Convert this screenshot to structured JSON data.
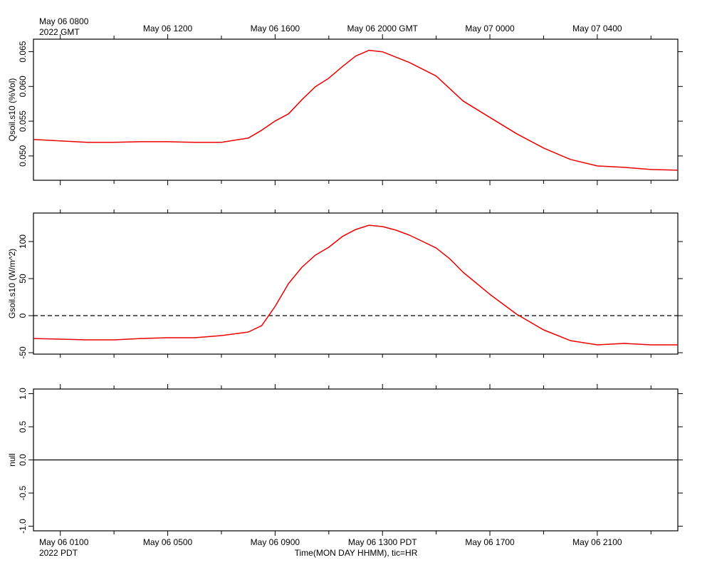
{
  "chart_data": [
    {
      "type": "line",
      "ylabel": "Qsoil.s10 (%Vol)",
      "xlim": [
        "2022-05-06 07:00",
        "2022-05-07 07:00"
      ],
      "x": [
        "2022-05-06 07:00",
        "2022-05-06 08:00",
        "2022-05-06 09:00",
        "2022-05-06 10:00",
        "2022-05-06 11:00",
        "2022-05-06 12:00",
        "2022-05-06 13:00",
        "2022-05-06 14:00",
        "2022-05-06 15:00",
        "2022-05-06 15:30",
        "2022-05-06 16:00",
        "2022-05-06 16:30",
        "2022-05-06 17:00",
        "2022-05-06 17:30",
        "2022-05-06 18:00",
        "2022-05-06 18:30",
        "2022-05-06 19:00",
        "2022-05-06 19:30",
        "2022-05-06 20:00",
        "2022-05-06 21:00",
        "2022-05-06 22:00",
        "2022-05-06 23:00",
        "2022-05-07 00:00",
        "2022-05-07 01:00",
        "2022-05-07 02:00",
        "2022-05-07 03:00",
        "2022-05-07 04:00",
        "2022-05-07 05:00",
        "2022-05-07 06:00",
        "2022-05-07 07:00"
      ],
      "series": [
        {
          "color": "#ee0000",
          "values": [
            0.05236,
            0.05216,
            0.05195,
            0.05195,
            0.05205,
            0.05205,
            0.05195,
            0.05195,
            0.05257,
            0.0537,
            0.05503,
            0.05606,
            0.05811,
            0.05996,
            0.06119,
            0.06283,
            0.06437,
            0.0652,
            0.06499,
            0.06345,
            0.0615,
            0.05791,
            0.05554,
            0.05318,
            0.05113,
            0.04949,
            0.04856,
            0.04836,
            0.04805,
            0.04795
          ]
        }
      ],
      "ylim": [
        0.0465,
        0.0668
      ],
      "yticks": [
        {
          "value": 0.05,
          "label": "0.050"
        },
        0.055,
        {
          "value": 0.06,
          "label": "0.060"
        },
        0.065
      ],
      "xticks_top": [
        {
          "value": "2022-05-06 08:00",
          "label": "May 06 0800"
        },
        {
          "value": "2022-05-06 12:00",
          "label": "May 06 1200"
        },
        {
          "value": "2022-05-06 16:00",
          "label": "May 06 1600"
        },
        {
          "value": "2022-05-06 20:00",
          "label": "May 06 2000 GMT"
        },
        {
          "value": "2022-05-07 00:00",
          "label": "May 07 0000"
        },
        {
          "value": "2022-05-07 04:00",
          "label": "May 07 0400"
        }
      ],
      "xtick_note": "2022 GMT",
      "xminorticks": [
        "2022-05-06 10:00",
        "2022-05-06 14:00",
        "2022-05-06 18:00",
        "2022-05-06 22:00",
        "2022-05-07 02:00",
        "2022-05-07 06:00"
      ]
    },
    {
      "type": "line",
      "ylabel": "Gsoil.s10 (W/m^2)",
      "xlim": [
        "2022-05-06 07:00",
        "2022-05-07 07:00"
      ],
      "x": [
        "2022-05-06 07:00",
        "2022-05-06 08:00",
        "2022-05-06 09:00",
        "2022-05-06 10:00",
        "2022-05-06 11:00",
        "2022-05-06 12:00",
        "2022-05-06 13:00",
        "2022-05-06 14:00",
        "2022-05-06 15:00",
        "2022-05-06 15:30",
        "2022-05-06 16:00",
        "2022-05-06 16:30",
        "2022-05-06 17:00",
        "2022-05-06 17:30",
        "2022-05-06 18:00",
        "2022-05-06 18:30",
        "2022-05-06 19:00",
        "2022-05-06 19:30",
        "2022-05-06 20:00",
        "2022-05-06 20:30",
        "2022-05-06 21:00",
        "2022-05-06 21:30",
        "2022-05-06 22:00",
        "2022-05-06 22:30",
        "2022-05-06 23:00",
        "2022-05-07 00:00",
        "2022-05-07 01:00",
        "2022-05-07 02:00",
        "2022-05-07 03:00",
        "2022-05-07 04:00",
        "2022-05-07 05:00",
        "2022-05-07 06:00",
        "2022-05-07 07:00"
      ],
      "series": [
        {
          "color": "#ee0000",
          "values": [
            -30.8,
            -31.7,
            -32.7,
            -32.7,
            -30.8,
            -29.8,
            -29.8,
            -26.9,
            -22.1,
            -13.5,
            12.5,
            43.3,
            65.4,
            81.7,
            92.3,
            106.7,
            116.3,
            122.1,
            120.2,
            115.4,
            108.7,
            100,
            91.3,
            76.9,
            58.7,
            28.8,
            1.9,
            -19.2,
            -33.7,
            -39.4,
            -37.5,
            -39.4,
            -39.4
          ]
        }
      ],
      "ylim": [
        -51.9,
        138.5
      ],
      "yticks": [
        -50,
        0,
        50,
        100
      ],
      "hline": {
        "value": 0,
        "style": "dashed"
      },
      "xminorticks": [
        "2022-05-06 08:00",
        "2022-05-06 10:00",
        "2022-05-06 12:00",
        "2022-05-06 14:00",
        "2022-05-06 16:00",
        "2022-05-06 18:00",
        "2022-05-06 20:00",
        "2022-05-06 22:00",
        "2022-05-07 00:00",
        "2022-05-07 02:00",
        "2022-05-07 04:00",
        "2022-05-07 06:00"
      ]
    },
    {
      "type": "line",
      "ylabel": "null",
      "xlim": [
        "2022-05-06 07:00",
        "2022-05-07 07:00"
      ],
      "x": [],
      "series": [],
      "ylim": [
        -1.07,
        1.07
      ],
      "yticks": [
        {
          "value": -1,
          "label": "-1.0"
        },
        -0.5,
        {
          "value": 0,
          "label": "0.0"
        },
        0.5,
        {
          "value": 1,
          "label": "1.0"
        }
      ],
      "hline": {
        "value": 0,
        "style": "solid"
      },
      "xticks_bottom": [
        {
          "value": "2022-05-06 08:00",
          "label": "May 06 0100"
        },
        {
          "value": "2022-05-06 12:00",
          "label": "May 06 0500"
        },
        {
          "value": "2022-05-06 16:00",
          "label": "May 06 0900"
        },
        {
          "value": "2022-05-06 20:00",
          "label": "May 06 1300 PDT"
        },
        {
          "value": "2022-05-07 00:00",
          "label": "May 06 1700"
        },
        {
          "value": "2022-05-07 04:00",
          "label": "May 06 2100"
        }
      ],
      "xtick_note": "2022 PDT",
      "xlabel": "Time(MON DAY HHMM), tic=HR",
      "xminorticks": [
        "2022-05-06 10:00",
        "2022-05-06 14:00",
        "2022-05-06 18:00",
        "2022-05-06 22:00",
        "2022-05-07 02:00",
        "2022-05-07 06:00"
      ]
    }
  ]
}
